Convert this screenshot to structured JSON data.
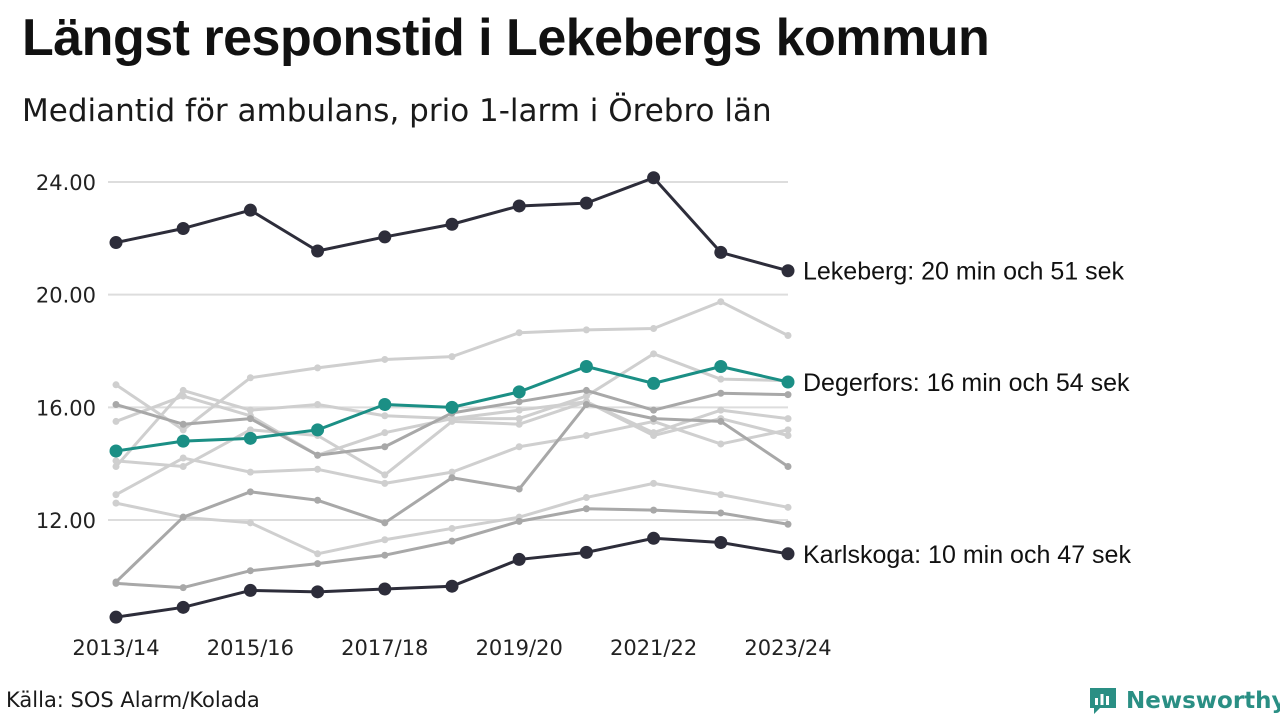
{
  "header": {
    "title": "Längst responstid i Lekebergs kommun",
    "subtitle": "Mediantid för ambulans, prio 1-larm i Örebro län"
  },
  "footer": {
    "source": "Källa: SOS Alarm/Kolada",
    "brand": "Newsworthy"
  },
  "colors": {
    "highlight_dark": "#2d2d3a",
    "highlight_accent": "#1b8f85",
    "context_light": "#cfcfcf",
    "context_mid": "#a8a8a8",
    "grid": "#dddddd",
    "brand": "#2a8f84"
  },
  "chart_data": {
    "type": "line",
    "title": "Längst responstid i Lekebergs kommun",
    "subtitle": "Mediantid för ambulans, prio 1-larm i Örebro län",
    "xlabel": "",
    "ylabel": "",
    "ylim": [
      8.0,
      24.5
    ],
    "yticks": [
      12.0,
      16.0,
      20.0,
      24.0
    ],
    "x": [
      "2013/14",
      "2014/15",
      "2015/16",
      "2016/17",
      "2017/18",
      "2018/19",
      "2019/20",
      "2020/21",
      "2021/22",
      "2022/23",
      "2023/24"
    ],
    "xtick_labels": [
      "2013/14",
      "",
      "2015/16",
      "",
      "2017/18",
      "",
      "2019/20",
      "",
      "2021/22",
      "",
      "2023/24"
    ],
    "grid": "horizontal",
    "legend": "direct labels at line ends",
    "series": [
      {
        "name": "Lekeberg",
        "label": "Lekeberg: 20 min och 51 sek",
        "role": "dark",
        "values": [
          21.85,
          22.35,
          23.0,
          21.55,
          22.05,
          22.5,
          23.15,
          23.25,
          24.15,
          21.5,
          20.85
        ]
      },
      {
        "name": "Degerfors",
        "label": "Degerfors: 16 min och 54 sek",
        "role": "accent",
        "values": [
          14.45,
          14.8,
          14.9,
          15.2,
          16.1,
          16.0,
          16.55,
          17.45,
          16.85,
          17.45,
          16.9
        ]
      },
      {
        "name": "Karlskoga",
        "label": "Karlskoga: 10 min och 47 sek",
        "role": "dark",
        "values": [
          8.55,
          8.9,
          9.5,
          9.45,
          9.55,
          9.65,
          10.6,
          10.85,
          11.35,
          11.2,
          10.8
        ]
      },
      {
        "role": "light",
        "values": [
          16.8,
          15.2,
          17.05,
          17.4,
          17.7,
          17.8,
          18.65,
          18.75,
          18.8,
          19.75,
          18.55
        ]
      },
      {
        "role": "light",
        "values": [
          13.9,
          16.6,
          15.9,
          16.1,
          15.7,
          15.6,
          15.6,
          16.4,
          17.9,
          17.0,
          16.95
        ]
      },
      {
        "role": "light",
        "values": [
          15.5,
          16.4,
          15.7,
          14.3,
          15.1,
          15.6,
          15.9,
          16.2,
          15.1,
          15.9,
          15.6
        ]
      },
      {
        "role": "light",
        "values": [
          14.1,
          13.9,
          15.2,
          15.0,
          13.6,
          15.5,
          15.4,
          16.2,
          15.0,
          15.6,
          15.0
        ]
      },
      {
        "role": "light",
        "values": [
          12.9,
          14.2,
          13.7,
          13.8,
          13.3,
          13.7,
          14.6,
          15.0,
          15.5,
          14.7,
          15.2
        ]
      },
      {
        "role": "mid",
        "values": [
          16.1,
          15.4,
          15.6,
          14.3,
          14.6,
          15.8,
          16.2,
          16.6,
          15.9,
          16.5,
          16.45
        ]
      },
      {
        "role": "mid",
        "values": [
          9.8,
          12.1,
          13.0,
          12.7,
          11.9,
          13.5,
          13.1,
          16.1,
          15.6,
          15.5,
          13.9
        ]
      },
      {
        "role": "light",
        "values": [
          12.6,
          12.1,
          11.9,
          10.8,
          11.3,
          11.7,
          12.1,
          12.8,
          13.3,
          12.9,
          12.45
        ]
      },
      {
        "role": "mid",
        "values": [
          9.75,
          9.6,
          10.2,
          10.45,
          10.75,
          11.25,
          11.95,
          12.4,
          12.35,
          12.25,
          11.85
        ]
      }
    ]
  }
}
